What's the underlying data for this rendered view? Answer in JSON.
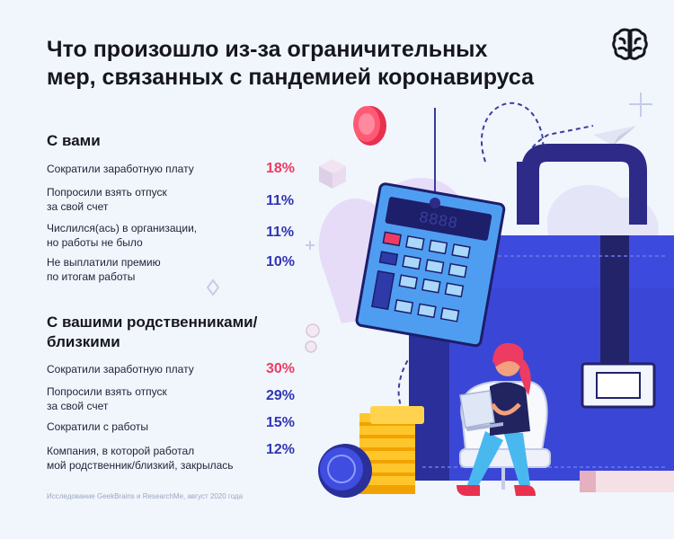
{
  "title": "Что произошло из-за ограничительных\nмер, связанных с пандемией коронавируса",
  "sections": [
    {
      "title": "С вами",
      "rows": [
        {
          "label": "Сократили заработную плату",
          "value": "18%",
          "color": "#ee3b61"
        },
        {
          "label": "Попросили взять отпуск\nза свой счет",
          "value": "11%",
          "color": "#3135b5"
        },
        {
          "label": "Числился(ась) в организации,\nно работы не было",
          "value": "11%",
          "color": "#3135b5"
        },
        {
          "label": "Не выплатили премию\nпо итогам работы",
          "value": "10%",
          "color": "#3135b5"
        }
      ]
    },
    {
      "title": "С вашими родственниками/\nблизкими",
      "rows": [
        {
          "label": "Сократили заработную плату",
          "value": "30%",
          "color": "#ee3b61"
        },
        {
          "label": "Попросили взять отпуск\nза свой счет",
          "value": "29%",
          "color": "#3135b5"
        },
        {
          "label": "Сократили с работы",
          "value": "15%",
          "color": "#3135b5"
        },
        {
          "label": "Компания, в которой работал\nмой родственник/близкий, закрылась",
          "value": "12%",
          "color": "#3135b5"
        }
      ]
    }
  ],
  "footnote": "Исследование GeekBrains и ResearchMe, август 2020 года",
  "icons": {
    "logo": "brain-icon",
    "illustration": [
      "briefcase-icon",
      "calculator-icon",
      "coin-icon",
      "coin-stack-icon",
      "paper-plane-icon",
      "woman-with-laptop-icon"
    ]
  }
}
